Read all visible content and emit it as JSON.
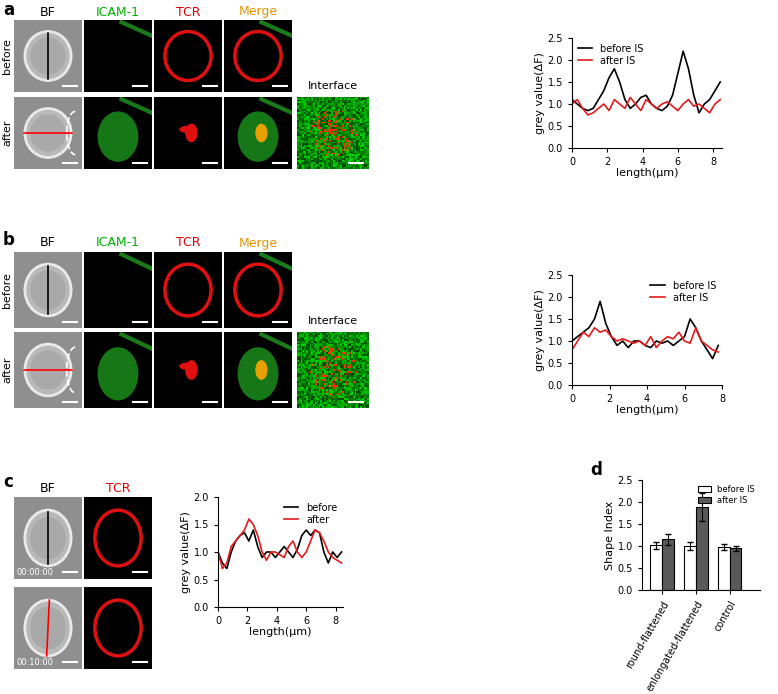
{
  "panels": [
    {
      "label": "a",
      "columns": [
        "BF",
        "ICAM-1",
        "TCR",
        "Merge"
      ],
      "colors": [
        "#000000",
        "#00b000",
        "#e00000",
        "#e69500"
      ],
      "rows": [
        "before",
        "after"
      ],
      "inset": "Interface"
    },
    {
      "label": "b",
      "columns": [
        "BF",
        "ICAM-1",
        "TCR",
        "Merge"
      ],
      "colors": [
        "#000000",
        "#00b000",
        "#e00000",
        "#e69500"
      ],
      "rows": [
        "before",
        "after"
      ],
      "inset": "Interface"
    },
    {
      "label": "c",
      "columns": [
        "BF",
        "TCR"
      ],
      "colors": [
        "#000000",
        "#e00000"
      ],
      "timestamps": [
        "00:00:00",
        "00:10:00"
      ]
    },
    {
      "label": "d"
    }
  ],
  "chart_data": [
    {
      "type": "line",
      "xlabel": "length(μm)",
      "ylabel": "grey value(ΔF)",
      "x": [
        0,
        0.3,
        0.6,
        0.9,
        1.2,
        1.5,
        1.8,
        2.1,
        2.4,
        2.7,
        3.0,
        3.3,
        3.6,
        3.9,
        4.2,
        4.5,
        4.8,
        5.1,
        5.4,
        5.7,
        6.0,
        6.3,
        6.6,
        6.9,
        7.2,
        7.5,
        7.8,
        8.1,
        8.4
      ],
      "series": [
        {
          "name": "before IS",
          "color": "#000000",
          "values": [
            1.1,
            1.0,
            0.9,
            0.85,
            0.9,
            1.1,
            1.3,
            1.6,
            1.8,
            1.5,
            1.1,
            0.9,
            1.0,
            1.15,
            1.2,
            1.0,
            0.9,
            0.85,
            0.95,
            1.2,
            1.7,
            2.2,
            1.8,
            1.2,
            0.8,
            1.0,
            1.1,
            1.3,
            1.5
          ]
        },
        {
          "name": "after IS",
          "color": "#e41a1c",
          "values": [
            1.0,
            1.1,
            0.9,
            0.75,
            0.8,
            0.9,
            1.0,
            0.85,
            1.1,
            1.0,
            0.9,
            1.15,
            1.0,
            0.85,
            1.1,
            1.0,
            0.9,
            1.0,
            1.05,
            0.95,
            0.85,
            1.0,
            1.1,
            0.95,
            1.0,
            0.9,
            0.8,
            1.0,
            1.1
          ]
        }
      ],
      "xlim": [
        0,
        8.5
      ],
      "xticks": [
        0,
        2,
        4,
        6,
        8
      ],
      "ylim": [
        0,
        2.5
      ],
      "yticks": [
        {
          "value": 0,
          "label": "0.0"
        },
        0.5,
        {
          "value": 1,
          "label": "1.0"
        },
        1.5,
        {
          "value": 2,
          "label": "2.0"
        },
        2.5
      ],
      "legend": "upper left",
      "grid": false
    },
    {
      "type": "line",
      "xlabel": "length(μm)",
      "ylabel": "grey value(ΔF)",
      "x": [
        0,
        0.3,
        0.6,
        0.9,
        1.2,
        1.5,
        1.8,
        2.1,
        2.4,
        2.7,
        3.0,
        3.3,
        3.6,
        3.9,
        4.2,
        4.5,
        4.8,
        5.1,
        5.4,
        5.7,
        6.0,
        6.3,
        6.6,
        6.9,
        7.2,
        7.5,
        7.8
      ],
      "series": [
        {
          "name": "before IS",
          "color": "#000000",
          "values": [
            1.0,
            1.1,
            1.2,
            1.3,
            1.5,
            1.9,
            1.4,
            1.1,
            0.9,
            1.0,
            0.85,
            1.0,
            1.0,
            0.9,
            0.85,
            1.0,
            0.95,
            1.0,
            0.9,
            1.0,
            1.1,
            1.5,
            1.3,
            1.0,
            0.8,
            0.6,
            0.9
          ]
        },
        {
          "name": "after IS",
          "color": "#e41a1c",
          "values": [
            0.8,
            1.0,
            1.2,
            1.1,
            1.3,
            1.2,
            1.25,
            1.1,
            1.0,
            1.05,
            1.0,
            0.95,
            1.0,
            0.9,
            1.1,
            0.85,
            1.0,
            1.1,
            1.05,
            1.2,
            1.0,
            0.95,
            1.3,
            1.0,
            0.9,
            0.8,
            0.75
          ]
        }
      ],
      "xlim": [
        0,
        8
      ],
      "xticks": [
        0,
        2,
        4,
        6,
        8
      ],
      "ylim": [
        0,
        2.5
      ],
      "yticks": [
        {
          "value": 0,
          "label": "0.0"
        },
        0.5,
        {
          "value": 1,
          "label": "1.0"
        },
        1.5,
        {
          "value": 2,
          "label": "2.0"
        },
        2.5
      ],
      "legend": "upper right",
      "grid": false
    },
    {
      "type": "line",
      "xlabel": "length(μm)",
      "ylabel": "grey value(ΔF)",
      "x": [
        0,
        0.3,
        0.6,
        0.9,
        1.2,
        1.5,
        1.8,
        2.1,
        2.4,
        2.7,
        3.0,
        3.3,
        3.6,
        3.9,
        4.2,
        4.5,
        4.8,
        5.1,
        5.4,
        5.7,
        6.0,
        6.3,
        6.6,
        6.9,
        7.2,
        7.5,
        7.8,
        8.1,
        8.4
      ],
      "series": [
        {
          "name": "before",
          "color": "#000000",
          "values": [
            1.0,
            0.8,
            0.7,
            1.0,
            1.2,
            1.3,
            1.35,
            1.2,
            1.4,
            1.1,
            0.9,
            1.0,
            1.0,
            0.9,
            1.0,
            1.1,
            1.0,
            0.9,
            1.05,
            1.3,
            1.4,
            1.3,
            1.4,
            1.35,
            1.0,
            0.8,
            1.0,
            0.9,
            1.0
          ]
        },
        {
          "name": "after",
          "color": "#e41a1c",
          "values": [
            1.0,
            0.7,
            0.8,
            1.1,
            1.2,
            1.3,
            1.4,
            1.6,
            1.5,
            1.3,
            1.0,
            0.85,
            1.0,
            1.0,
            0.95,
            0.9,
            1.1,
            1.2,
            1.0,
            0.9,
            1.0,
            1.2,
            1.4,
            1.35,
            1.2,
            1.0,
            0.9,
            0.85,
            0.8
          ]
        }
      ],
      "xlim": [
        0,
        8.5
      ],
      "xticks": [
        0,
        2,
        4,
        6,
        8
      ],
      "ylim": [
        0,
        2.0
      ],
      "yticks": [
        {
          "value": 0,
          "label": "0.0"
        },
        0.5,
        {
          "value": 1,
          "label": "1.0"
        },
        1.5,
        {
          "value": 2,
          "label": "2.0"
        }
      ],
      "legend": "upper right",
      "grid": false
    },
    {
      "type": "bar",
      "ylabel": "Shape Index",
      "categories": [
        "round-flattened",
        "enlongated-flattened",
        "control"
      ],
      "series": [
        {
          "name": "before IS",
          "color": "#ffffff",
          "values": [
            1.02,
            1.0,
            0.98
          ],
          "errors": [
            0.08,
            0.1,
            0.07
          ]
        },
        {
          "name": "after IS",
          "color": "#595959",
          "values": [
            1.15,
            1.88,
            0.95
          ],
          "errors": [
            0.12,
            0.32,
            0.06
          ]
        }
      ],
      "ylim": [
        0,
        2.5
      ],
      "yticks": [
        {
          "value": 0,
          "label": "0.0"
        },
        0.5,
        {
          "value": 1,
          "label": "1.0"
        },
        1.5,
        {
          "value": 2,
          "label": "2.0"
        },
        2.5
      ],
      "legend": "upper right",
      "grid": false
    }
  ]
}
